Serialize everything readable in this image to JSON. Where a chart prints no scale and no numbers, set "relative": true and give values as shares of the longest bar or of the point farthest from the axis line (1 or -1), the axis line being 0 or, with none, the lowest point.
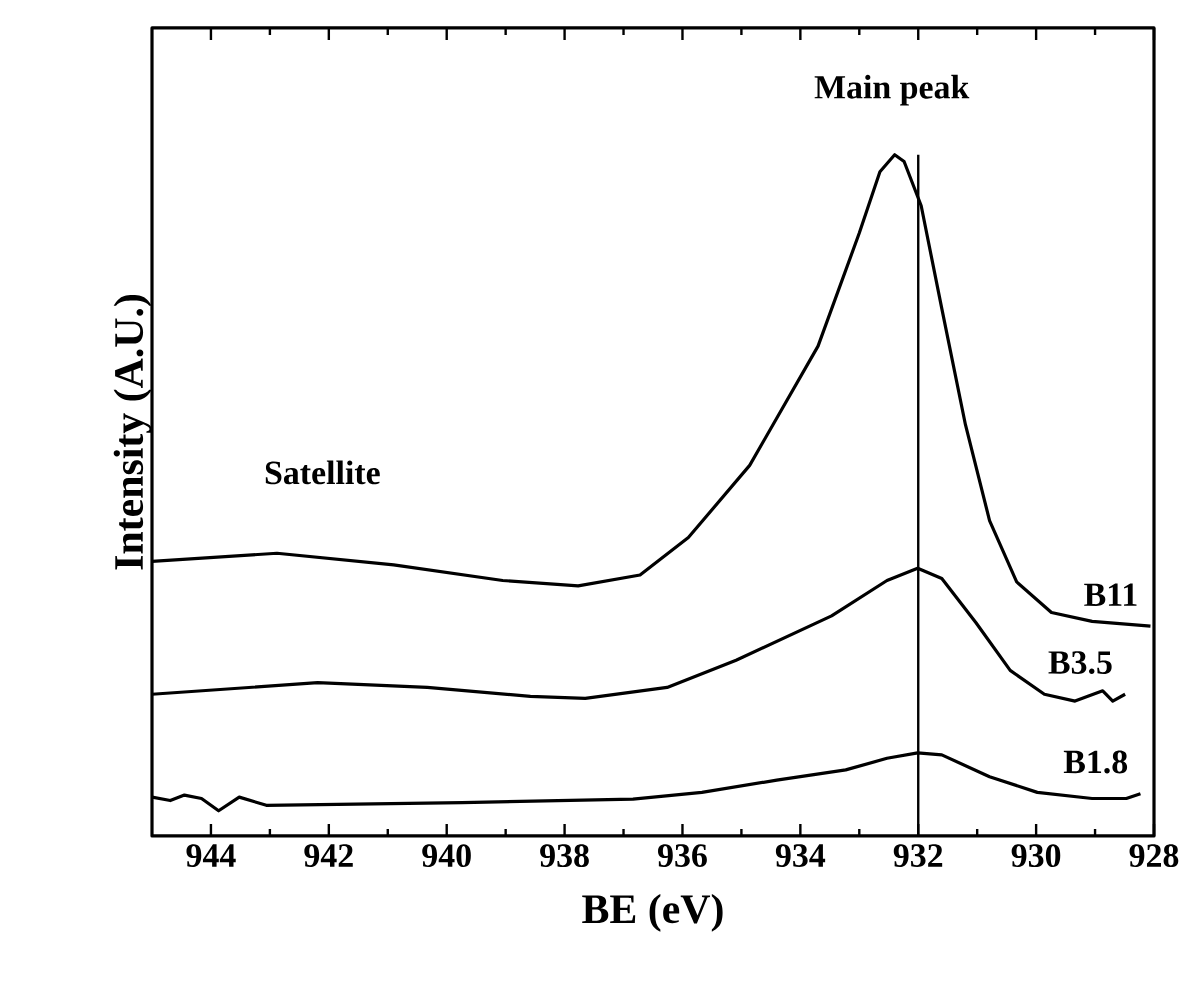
{
  "chart_data": {
    "type": "line",
    "xlabel": "BE (eV)",
    "ylabel": "Intensity (A.U.)",
    "relative": true,
    "xlim": [
      945,
      928
    ],
    "xticks": [
      944,
      942,
      940,
      938,
      936,
      934,
      932,
      930,
      928
    ],
    "ref_lines": [
      {
        "axis": "x",
        "value": 932,
        "label": "Main peak",
        "color": "#000000"
      }
    ],
    "annotations": [
      "Satellite"
    ],
    "series": [
      {
        "name": "B11",
        "color": "#000000",
        "x": [
          945,
          942.88,
          940.9,
          939.05,
          937.77,
          936.72,
          935.9,
          934.86,
          933.7,
          933.0,
          932.65,
          932.4,
          932.24,
          931.95,
          931.6,
          931.2,
          930.79,
          930.33,
          929.74,
          929.05,
          928.06
        ],
        "values": [
          0.403,
          0.415,
          0.398,
          0.375,
          0.367,
          0.383,
          0.438,
          0.544,
          0.719,
          0.885,
          0.975,
          1.0,
          0.99,
          0.925,
          0.774,
          0.604,
          0.463,
          0.373,
          0.328,
          0.315,
          0.308
        ]
      },
      {
        "name": "B3.5",
        "color": "#000000",
        "x": [
          945,
          942.19,
          940.33,
          938.58,
          937.65,
          936.26,
          935.09,
          933.47,
          932.53,
          932.01,
          931.6,
          931.02,
          930.44,
          929.86,
          929.34,
          928.87,
          928.7,
          928.49
        ],
        "values": [
          0.208,
          0.225,
          0.218,
          0.205,
          0.202,
          0.218,
          0.258,
          0.323,
          0.375,
          0.393,
          0.378,
          0.313,
          0.243,
          0.208,
          0.198,
          0.213,
          0.198,
          0.208
        ]
      },
      {
        "name": "B1.8",
        "color": "#000000",
        "x": [
          945,
          944.69,
          944.45,
          944.16,
          943.87,
          943.52,
          943.06,
          939.74,
          936.84,
          935.67,
          934.4,
          933.23,
          932.53,
          932.01,
          931.6,
          930.79,
          929.98,
          929.05,
          928.47,
          928.23
        ],
        "values": [
          0.057,
          0.052,
          0.06,
          0.055,
          0.037,
          0.057,
          0.045,
          0.049,
          0.054,
          0.064,
          0.082,
          0.097,
          0.114,
          0.122,
          0.119,
          0.087,
          0.064,
          0.055,
          0.055,
          0.062
        ]
      }
    ]
  }
}
